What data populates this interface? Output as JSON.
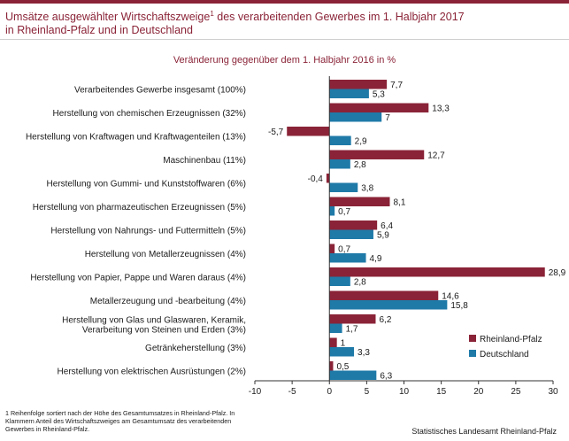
{
  "title": {
    "line1_prefix": "Umsätze ausgewählter Wirtschaftszweige",
    "footnote_marker": "1",
    "line1_suffix": " des verarbeitenden Gewerbes im 1. Halbjahr 2017",
    "line2": "in Rheinland-Pfalz und in Deutschland"
  },
  "footnote": "1 Reihenfolge sortiert nach der Höhe des Gesamtumsatzes in Rheinland-Pfalz. In Klammern Anteil des Wirtschaftszweiges am Gesamtumsatz des verarbeitenden Gewerbes in Rheinland-Pfalz.",
  "source": "Statistisches Landesamt Rheinland-Pfalz",
  "colors": {
    "rheinland_pfalz": "#8a2337",
    "deutschland": "#1f7aa8",
    "title": "#8a2337"
  },
  "chart_data": {
    "type": "bar",
    "orientation": "horizontal",
    "title": "Veränderung gegenüber dem 1. Halbjahr 2016  in %",
    "categories": [
      [
        "Verarbeitendes Gewerbe insgesamt (100%)"
      ],
      [
        "Herstellung von chemischen Erzeugnissen (32%)"
      ],
      [
        "Herstellung von Kraftwagen und Kraftwagenteilen (13%)"
      ],
      [
        "Maschinenbau (11%)"
      ],
      [
        "Herstellung von Gummi- und Kunststoffwaren (6%)"
      ],
      [
        "Herstellung von pharmazeutischen Erzeugnissen (5%)"
      ],
      [
        "Herstellung von Nahrungs- und Futtermitteln (5%)"
      ],
      [
        "Herstellung von Metallerzeugnissen (4%)"
      ],
      [
        "Herstellung von Papier, Pappe und Waren daraus (4%)"
      ],
      [
        "Metallerzeugung und -bearbeitung (4%)"
      ],
      [
        "Herstellung von Glas und Glaswaren, Keramik,",
        "Verarbeitung von Steinen und Erden (3%)"
      ],
      [
        "Getränkeherstellung (3%)"
      ],
      [
        "Herstellung von elektrischen Ausrüstungen (2%)"
      ]
    ],
    "series": [
      {
        "name": "Rheinland-Pfalz",
        "values": [
          7.7,
          13.3,
          -5.7,
          12.7,
          -0.4,
          8.1,
          6.4,
          0.7,
          28.9,
          14.6,
          6.2,
          1.0,
          0.5
        ]
      },
      {
        "name": "Deutschland",
        "values": [
          5.3,
          7.0,
          2.9,
          2.8,
          3.8,
          0.7,
          5.9,
          4.9,
          2.8,
          15.8,
          1.7,
          3.3,
          6.3
        ]
      }
    ],
    "xlim": [
      -10,
      30
    ],
    "xticks": [
      -10,
      -5,
      0,
      5,
      10,
      15,
      20,
      25,
      30
    ],
    "legend_position": "bottom-right",
    "grid": false
  }
}
